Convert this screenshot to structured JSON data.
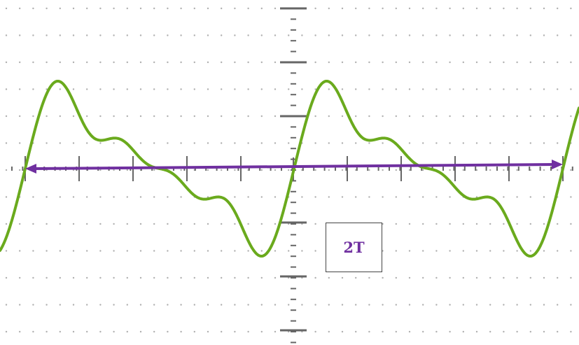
{
  "annotation": {
    "label": "2T"
  },
  "colors": {
    "background": "#ffffff",
    "waveform": "#6aaa1d",
    "arrow": "#7030a0",
    "grid_dots": "#b0b0b0",
    "axis": "#666666",
    "label_text": "#7030a0",
    "label_border": "#444444"
  },
  "grid": {
    "visible": true,
    "style": "dotted"
  }
}
